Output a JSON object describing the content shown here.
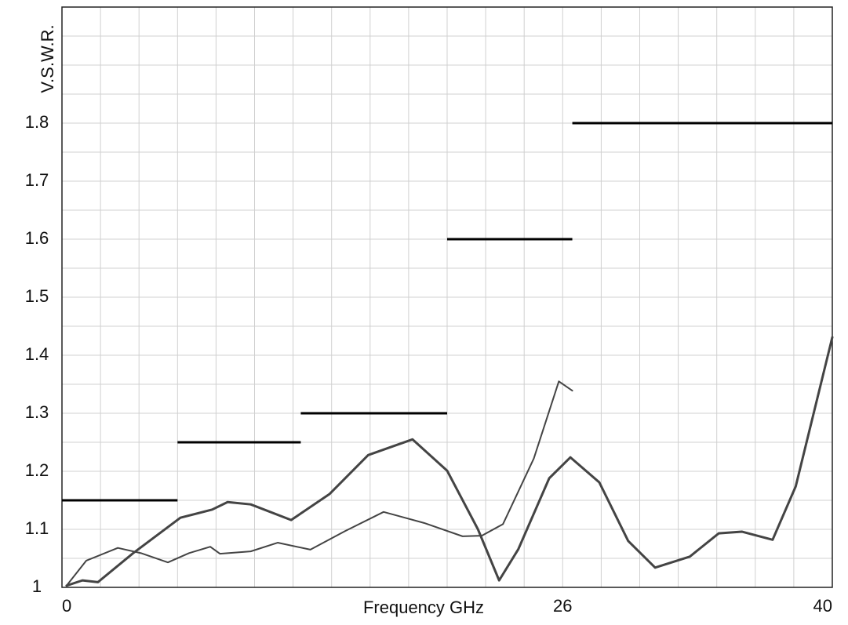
{
  "chart_data": {
    "type": "line",
    "x_label": "Frequency GHz",
    "y_label": "V.S.W.R.",
    "xlim": [
      0,
      40
    ],
    "ylim": [
      1,
      2
    ],
    "xticks": [
      0,
      26,
      40
    ],
    "yticks": [
      1,
      1.1,
      1.2,
      1.3,
      1.4,
      1.5,
      1.6,
      1.7,
      1.8
    ],
    "x_grid": [
      0,
      2,
      4,
      6,
      8,
      10,
      12,
      14,
      16,
      18,
      20,
      22,
      24,
      26,
      28,
      30,
      32,
      34,
      36,
      38,
      40
    ],
    "y_grid": [
      1,
      1.05,
      1.1,
      1.15,
      1.2,
      1.25,
      1.3,
      1.35,
      1.4,
      1.45,
      1.5,
      1.55,
      1.6,
      1.65,
      1.7,
      1.75,
      1.8,
      1.85,
      1.9,
      1.95,
      2
    ],
    "grid": true,
    "spec_limits": {
      "color": "#000000",
      "starts": [
        0,
        6,
        12.4,
        20,
        26.5
      ],
      "ends": [
        6,
        12.4,
        20,
        26.5,
        40
      ],
      "values": [
        1.15,
        1.25,
        1.3,
        1.6,
        1.8
      ]
    },
    "series": [
      {
        "color": "#444444",
        "width": 2,
        "x": [
          0.24,
          1.26,
          2.9,
          4.1,
          5.5,
          6.6,
          7.7,
          8.2,
          9.8,
          11.2,
          12.9,
          14.7,
          16.7,
          18.8,
          20.8,
          21.8,
          22.9,
          24.5,
          25.8,
          26.5
        ],
        "values": [
          1.003,
          1.046,
          1.068,
          1.059,
          1.043,
          1.059,
          1.07,
          1.058,
          1.062,
          1.077,
          1.065,
          1.097,
          1.13,
          1.111,
          1.088,
          1.089,
          1.109,
          1.222,
          1.355,
          1.339
        ]
      },
      {
        "color": "#444444",
        "width": 3,
        "x": [
          0.24,
          1.06,
          1.87,
          3.7,
          6.15,
          7.8,
          8.6,
          9.8,
          11.9,
          13.9,
          15.9,
          18.2,
          20.0,
          21.6,
          22.7,
          23.7,
          25.3,
          26.4,
          27.9,
          29.4,
          30.8,
          32.6,
          34.1,
          35.3,
          36.9,
          38.1,
          40
        ],
        "values": [
          1.003,
          1.012,
          1.009,
          1.059,
          1.12,
          1.134,
          1.147,
          1.143,
          1.116,
          1.161,
          1.228,
          1.255,
          1.201,
          1.1,
          1.012,
          1.066,
          1.188,
          1.224,
          1.181,
          1.08,
          1.034,
          1.053,
          1.093,
          1.096,
          1.082,
          1.174,
          1.431
        ]
      }
    ]
  }
}
